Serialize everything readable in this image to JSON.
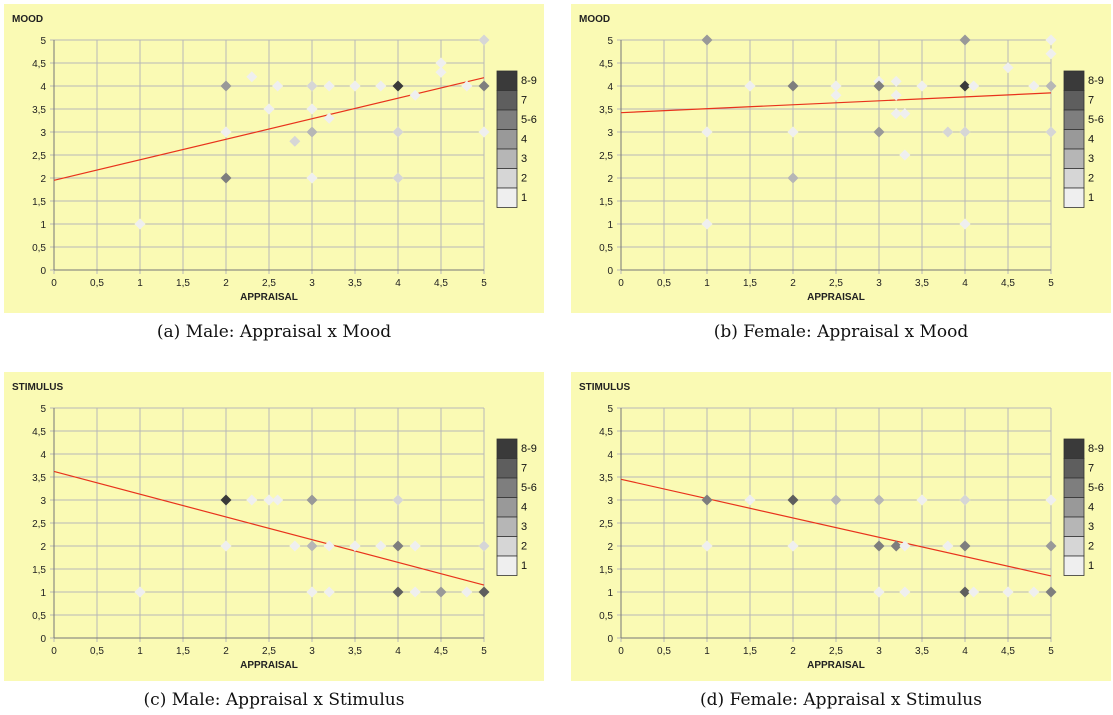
{
  "legend": {
    "labels": [
      "8-9",
      "7",
      "5-6",
      "4",
      "3",
      "2",
      "1"
    ],
    "colors": [
      "#3a3a3a",
      "#5e5e5e",
      "#7e7e7e",
      "#999999",
      "#b6b6b6",
      "#d6d6d6",
      "#efefef"
    ]
  },
  "style": {
    "background": "#fafab4",
    "grid": "#b8b8b8",
    "trend_line": "#e8331c"
  },
  "chart_data": [
    {
      "type": "scatter",
      "caption": "(a) Male: Appraisal x Mood",
      "ylabel": "MOOD",
      "xlabel": "APPRAISAL",
      "xlim": [
        0,
        5
      ],
      "ylim": [
        0,
        5
      ],
      "xticks": [
        "0",
        "0,5",
        "1",
        "1,5",
        "2",
        "2,5",
        "3",
        "3,5",
        "4",
        "4,5",
        "5"
      ],
      "yticks": [
        "0",
        "0,5",
        "1",
        "1,5",
        "2",
        "2,5",
        "3",
        "3,5",
        "4",
        "4,5",
        "5"
      ],
      "grid": true,
      "trend": [
        [
          0,
          1.95
        ],
        [
          5,
          4.18
        ]
      ],
      "points": [
        [
          1,
          1,
          1
        ],
        [
          2,
          4,
          4
        ],
        [
          2,
          3,
          1
        ],
        [
          2,
          2,
          6
        ],
        [
          2.3,
          4.2,
          1
        ],
        [
          2.5,
          3.5,
          1
        ],
        [
          2.6,
          4,
          1
        ],
        [
          2.8,
          2.8,
          2
        ],
        [
          3,
          4,
          2
        ],
        [
          3,
          3.5,
          1
        ],
        [
          3,
          3,
          3
        ],
        [
          3,
          2,
          1
        ],
        [
          3.2,
          4,
          1
        ],
        [
          3.2,
          3.3,
          1
        ],
        [
          3.5,
          4,
          1
        ],
        [
          3.8,
          4,
          1
        ],
        [
          4,
          4,
          9
        ],
        [
          4,
          3,
          2
        ],
        [
          4,
          2,
          2
        ],
        [
          4.2,
          3.8,
          1
        ],
        [
          4.5,
          4.5,
          1
        ],
        [
          4.5,
          4.3,
          1
        ],
        [
          4.8,
          4,
          1
        ],
        [
          5,
          5,
          2
        ],
        [
          5,
          4,
          6
        ],
        [
          5,
          3,
          1
        ]
      ]
    },
    {
      "type": "scatter",
      "caption": "(b) Female: Appraisal x Mood",
      "ylabel": "MOOD",
      "xlabel": "APPRAISAL",
      "xlim": [
        0,
        5
      ],
      "ylim": [
        0,
        5
      ],
      "xticks": [
        "0",
        "0,5",
        "1",
        "1,5",
        "2",
        "2,5",
        "3",
        "3,5",
        "4",
        "4,5",
        "5"
      ],
      "yticks": [
        "0",
        "0,5",
        "1",
        "1,5",
        "2",
        "2,5",
        "3",
        "3,5",
        "4",
        "4,5",
        "5"
      ],
      "grid": true,
      "trend": [
        [
          0,
          3.42
        ],
        [
          5,
          3.85
        ]
      ],
      "points": [
        [
          1,
          5,
          4
        ],
        [
          1,
          3,
          1
        ],
        [
          1,
          1,
          1
        ],
        [
          1.5,
          4,
          1
        ],
        [
          2,
          4,
          5
        ],
        [
          2,
          3,
          1
        ],
        [
          2,
          2,
          3
        ],
        [
          2.5,
          4,
          1
        ],
        [
          2.5,
          3.8,
          1
        ],
        [
          3,
          4.1,
          1
        ],
        [
          3,
          4,
          6
        ],
        [
          3,
          3,
          4
        ],
        [
          3.2,
          4.1,
          1
        ],
        [
          3.2,
          3.8,
          1
        ],
        [
          3.2,
          3.4,
          1
        ],
        [
          3.3,
          3.4,
          1
        ],
        [
          3.3,
          2.5,
          1
        ],
        [
          3.5,
          4,
          1
        ],
        [
          3.8,
          3,
          2
        ],
        [
          4,
          5,
          4
        ],
        [
          4,
          4,
          8
        ],
        [
          4,
          3,
          2
        ],
        [
          4,
          1,
          1
        ],
        [
          4.1,
          4,
          1
        ],
        [
          4.5,
          4.4,
          1
        ],
        [
          4.8,
          4,
          1
        ],
        [
          5,
          5,
          1
        ],
        [
          5,
          4.7,
          1
        ],
        [
          5,
          4,
          3
        ],
        [
          5,
          3,
          2
        ]
      ]
    },
    {
      "type": "scatter",
      "caption": "(c) Male: Appraisal x Stimulus",
      "ylabel": "STIMULUS",
      "xlabel": "APPRAISAL",
      "xlim": [
        0,
        5
      ],
      "ylim": [
        0,
        5
      ],
      "xticks": [
        "0",
        "0,5",
        "1",
        "1,5",
        "2",
        "2,5",
        "3",
        "3,5",
        "4",
        "4,5",
        "5"
      ],
      "yticks": [
        "0",
        "0,5",
        "1",
        "1,5",
        "2",
        "2,5",
        "3",
        "3,5",
        "4",
        "4,5",
        "5"
      ],
      "grid": true,
      "trend": [
        [
          0,
          3.62
        ],
        [
          5,
          1.15
        ]
      ],
      "points": [
        [
          1,
          1,
          1
        ],
        [
          2,
          3,
          8
        ],
        [
          2,
          2,
          1
        ],
        [
          2.3,
          3,
          1
        ],
        [
          2.5,
          3,
          1
        ],
        [
          2.6,
          3,
          1
        ],
        [
          2.8,
          2,
          1
        ],
        [
          3,
          3,
          4
        ],
        [
          3,
          2,
          3
        ],
        [
          3,
          1,
          1
        ],
        [
          3.2,
          2,
          1
        ],
        [
          3.2,
          1,
          1
        ],
        [
          3.5,
          2,
          1
        ],
        [
          3.8,
          2,
          1
        ],
        [
          4,
          3,
          2
        ],
        [
          4,
          2,
          5
        ],
        [
          4,
          1,
          7
        ],
        [
          4.2,
          2,
          1
        ],
        [
          4.2,
          1,
          1
        ],
        [
          4.5,
          1,
          4
        ],
        [
          4.8,
          1,
          1
        ],
        [
          5,
          2,
          2
        ],
        [
          5,
          1,
          7
        ]
      ]
    },
    {
      "type": "scatter",
      "caption": "(d) Female: Appraisal x Stimulus",
      "ylabel": "STIMULUS",
      "xlabel": "APPRAISAL",
      "xlim": [
        0,
        5
      ],
      "ylim": [
        0,
        5
      ],
      "xticks": [
        "0",
        "0,5",
        "1",
        "1,5",
        "2",
        "2,5",
        "3",
        "3,5",
        "4",
        "4,5",
        "5"
      ],
      "yticks": [
        "0",
        "0,5",
        "1",
        "1,5",
        "2",
        "2,5",
        "3",
        "3,5",
        "4",
        "4,5",
        "5"
      ],
      "grid": true,
      "trend": [
        [
          0,
          3.45
        ],
        [
          5,
          1.35
        ]
      ],
      "points": [
        [
          1,
          3,
          6
        ],
        [
          1,
          2,
          1
        ],
        [
          1.5,
          3,
          1
        ],
        [
          2,
          3,
          7
        ],
        [
          2,
          2,
          1
        ],
        [
          2.5,
          3,
          3
        ],
        [
          3,
          3,
          3
        ],
        [
          3,
          2,
          5
        ],
        [
          3,
          1,
          1
        ],
        [
          3.2,
          2,
          5
        ],
        [
          3.3,
          2,
          1
        ],
        [
          3.3,
          1,
          1
        ],
        [
          3.5,
          3,
          1
        ],
        [
          3.8,
          2,
          1
        ],
        [
          4,
          3,
          2
        ],
        [
          4,
          2,
          5
        ],
        [
          4,
          1,
          7
        ],
        [
          4.1,
          1,
          1
        ],
        [
          4.5,
          1,
          1
        ],
        [
          4.8,
          1,
          1
        ],
        [
          5,
          3,
          1
        ],
        [
          5,
          2,
          4
        ],
        [
          5,
          1,
          5
        ]
      ]
    }
  ]
}
